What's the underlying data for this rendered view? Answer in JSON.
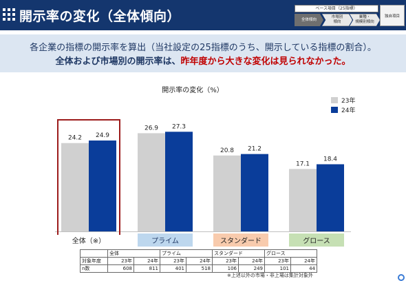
{
  "header": {
    "title": "開示率の変化（全体傾向）"
  },
  "breadcrumb": {
    "top_label": "ベース項目（25指標）",
    "steps": [
      "全体傾向",
      "市場別\n傾向",
      "業種・\n規模別傾向"
    ],
    "extra": "独自項目"
  },
  "summary": {
    "line1": "各企業の指標の開示率を算出（当社設定の25指標のうち、開示している指標の割合）。",
    "line2_part1": "全体および市場別の開示率",
    "line2_part2": "は、",
    "line2_part3": "昨年度から大きな変化は見られなかった。"
  },
  "colors": {
    "header": "#14366e",
    "series_23": "#d0d0d0",
    "series_24": "#0a3d9a",
    "highlight_box": "#9c1b1b"
  },
  "chart_data": {
    "type": "bar",
    "title": "開示率の変化（%）",
    "categories": [
      "全体（※）",
      "プライム",
      "スタンダード",
      "グロース"
    ],
    "series": [
      {
        "name": "23年",
        "values": [
          24.2,
          26.9,
          20.8,
          17.1
        ]
      },
      {
        "name": "24年",
        "values": [
          24.9,
          27.3,
          21.2,
          18.4
        ]
      }
    ],
    "ylim": [
      0,
      30
    ],
    "legend": "top-right",
    "grid": false
  },
  "table": {
    "groups": [
      "全体",
      "プライム",
      "スタンダード",
      "グロース"
    ],
    "year_row_label": "対象年度",
    "years": [
      "23年",
      "24年",
      "23年",
      "24年",
      "23年",
      "24年",
      "23年",
      "24年"
    ],
    "n_row_label": "n数",
    "n_values": [
      "608",
      "811",
      "401",
      "518",
      "106",
      "249",
      "101",
      "44"
    ]
  },
  "footnote": "※上述以外の市場・非上場は集計対象外"
}
